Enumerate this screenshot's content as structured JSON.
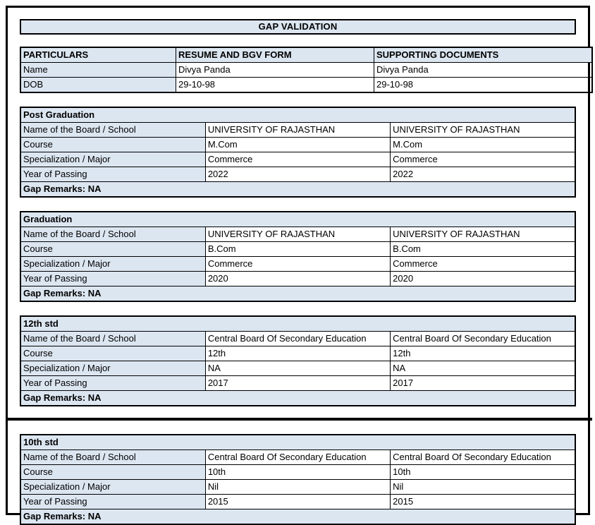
{
  "title": "GAP VALIDATION",
  "colors": {
    "accent_fill": "#dce6f1",
    "border": "#000000",
    "text": "#000000"
  },
  "info_table": {
    "headers": [
      "PARTICULARS",
      "RESUME AND BGV FORM",
      "SUPPORTING DOCUMENTS"
    ],
    "rows": [
      {
        "label": "Name",
        "resume": "Divya Panda",
        "supporting": "Divya Panda"
      },
      {
        "label": "DOB",
        "resume": "29-10-98",
        "supporting": "29-10-98"
      }
    ]
  },
  "sections": [
    {
      "title": "Post Graduation",
      "rows": [
        {
          "label": "Name of the Board / School",
          "resume": "UNIVERSITY OF RAJASTHAN",
          "supporting": "UNIVERSITY OF RAJASTHAN"
        },
        {
          "label": "Course",
          "resume": "M.Com",
          "supporting": "M.Com"
        },
        {
          "label": "Specialization / Major",
          "resume": "Commerce",
          "supporting": "Commerce"
        },
        {
          "label": "Year of Passing",
          "resume": "2022",
          "supporting": "2022"
        }
      ],
      "gap_remarks": "Gap Remarks: NA"
    },
    {
      "title": "Graduation",
      "rows": [
        {
          "label": "Name of the Board / School",
          "resume": "UNIVERSITY OF RAJASTHAN",
          "supporting": "UNIVERSITY OF RAJASTHAN"
        },
        {
          "label": "Course",
          "resume": "B.Com",
          "supporting": "B.Com"
        },
        {
          "label": "Specialization / Major",
          "resume": "Commerce",
          "supporting": "Commerce"
        },
        {
          "label": "Year of Passing",
          "resume": "2020",
          "supporting": "2020"
        }
      ],
      "gap_remarks": "Gap Remarks: NA"
    },
    {
      "title": "12th std",
      "rows": [
        {
          "label": "Name of the Board / School",
          "resume": "Central Board Of Secondary Education",
          "supporting": "Central Board Of Secondary Education"
        },
        {
          "label": "Course",
          "resume": "12th",
          "supporting": "12th"
        },
        {
          "label": "Specialization / Major",
          "resume": "NA",
          "supporting": "NA"
        },
        {
          "label": "Year of Passing",
          "resume": "2017",
          "supporting": "2017"
        }
      ],
      "gap_remarks": "Gap Remarks: NA"
    },
    {
      "title": "10th std",
      "rows": [
        {
          "label": "Name of the Board / School",
          "resume": "Central Board Of Secondary Education",
          "supporting": "Central Board Of Secondary Education"
        },
        {
          "label": "Course",
          "resume": "10th",
          "supporting": "10th"
        },
        {
          "label": "Specialization / Major",
          "resume": "Nil",
          "supporting": "Nil"
        },
        {
          "label": "Year of Passing",
          "resume": "2015",
          "supporting": "2015"
        }
      ],
      "gap_remarks": "Gap Remarks: NA"
    }
  ]
}
